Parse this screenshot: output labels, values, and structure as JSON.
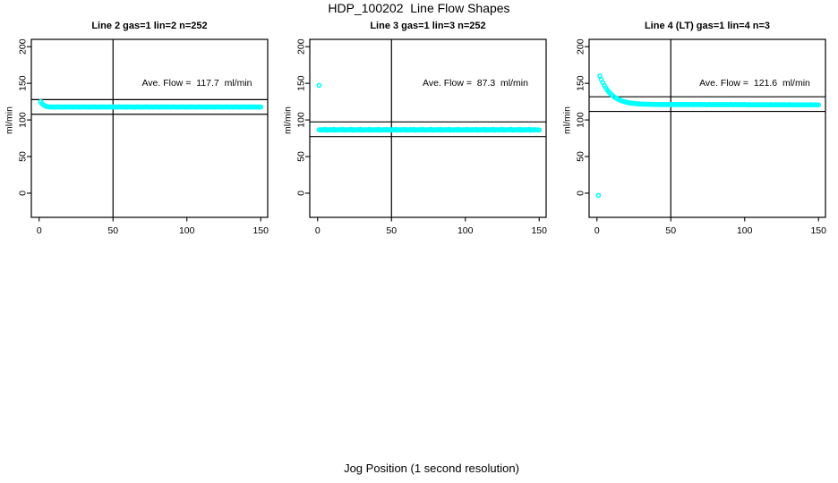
{
  "figure": {
    "title": "HDP_100202  Line Flow Shapes",
    "x_axis_label": "Jog Position (1 second resolution)",
    "background_color": "#ffffff",
    "axis_color": "#000000",
    "point_color": "#00ffff",
    "marker": "open-circle"
  },
  "chart_data": [
    {
      "type": "scatter",
      "title": "Line 2 gas=1 lin=2 n=252",
      "annotation": "Ave. Flow =  117.7  ml/min",
      "ave_flow": 117.7,
      "ylabel": "ml/min",
      "x_ticks": [
        0,
        50,
        100,
        150
      ],
      "y_ticks": [
        0,
        50,
        100,
        150,
        200
      ],
      "xlim": [
        -5.3,
        154.7
      ],
      "ylim": [
        -33,
        210
      ],
      "grid": false,
      "legend": "none",
      "vline_x": 50,
      "reference_lines": [
        127.7,
        107.7
      ],
      "x_start": 1,
      "x_step": 1,
      "y": [
        124.8,
        122.2,
        120.4,
        119.1,
        118.4,
        118.0,
        117.8,
        117.7,
        117.5,
        117.9,
        117.4,
        118.0,
        117.6,
        117.8,
        117.5,
        117.9,
        117.4,
        118.0,
        117.6,
        117.8,
        117.5,
        117.9,
        117.4,
        118.0,
        117.6,
        117.8,
        117.5,
        117.9,
        117.4,
        118.0,
        117.6,
        117.8,
        117.5,
        117.9,
        117.4,
        118.0,
        117.6,
        117.8,
        117.5,
        117.9,
        117.4,
        118.0,
        117.6,
        117.8,
        117.5,
        117.9,
        117.4,
        118.0,
        117.6,
        117.8,
        117.5,
        117.9,
        117.4,
        118.0,
        117.6,
        117.8,
        117.5,
        117.9,
        117.4,
        118.0,
        117.6,
        117.8,
        117.5,
        117.9,
        117.4,
        118.0,
        117.6,
        117.8,
        117.5,
        117.9,
        117.4,
        118.0,
        117.6,
        117.8,
        117.5,
        117.9,
        117.4,
        118.0,
        117.6,
        117.8,
        117.5,
        117.9,
        117.4,
        118.0,
        117.6,
        117.8,
        117.5,
        117.9,
        117.4,
        118.0,
        117.6,
        117.8,
        117.5,
        117.9,
        117.4,
        118.0,
        117.6,
        117.8,
        117.5,
        117.9,
        117.4,
        118.0,
        117.6,
        117.8,
        117.5,
        117.9,
        117.4,
        118.0,
        117.6,
        117.8,
        117.5,
        117.9,
        117.4,
        118.0,
        117.6,
        117.8,
        117.5,
        117.9,
        117.4,
        118.0,
        117.6,
        117.8,
        117.5,
        117.9,
        117.4,
        118.0,
        117.6,
        117.8,
        117.5,
        117.9,
        117.4,
        118.0,
        117.6,
        117.8,
        117.5,
        117.9,
        117.4,
        118.0,
        117.6,
        117.8,
        117.5,
        117.9,
        117.4,
        118.0,
        117.6,
        117.8,
        117.5,
        117.9,
        117.4,
        117.7
      ],
      "extra_points": []
    },
    {
      "type": "scatter",
      "title": "Line 3 gas=1 lin=3 n=252",
      "annotation": "Ave. Flow =  87.3  ml/min",
      "ave_flow": 87.3,
      "ylabel": "ml/min",
      "x_ticks": [
        0,
        50,
        100,
        150
      ],
      "y_ticks": [
        0,
        50,
        100,
        150,
        200
      ],
      "xlim": [
        -5.3,
        154.7
      ],
      "ylim": [
        -33,
        210
      ],
      "grid": false,
      "legend": "none",
      "vline_x": 50,
      "reference_lines": [
        97.3,
        77.3
      ],
      "x_start": 1,
      "x_step": 1,
      "y": [
        86.5,
        86.2,
        86.9,
        86.4,
        87.1,
        86.0,
        86.7,
        86.2,
        86.9,
        86.4,
        87.1,
        86.0,
        86.7,
        86.2,
        86.9,
        86.4,
        87.1,
        86.0,
        86.7,
        86.2,
        86.9,
        86.4,
        87.1,
        86.0,
        86.7,
        86.2,
        86.9,
        86.4,
        87.1,
        86.0,
        86.7,
        86.2,
        86.9,
        86.4,
        87.1,
        86.0,
        86.7,
        86.2,
        86.9,
        86.4,
        87.1,
        86.0,
        86.7,
        86.2,
        86.9,
        86.4,
        87.1,
        86.0,
        86.7,
        86.2,
        86.9,
        86.4,
        87.1,
        86.0,
        86.7,
        86.2,
        86.9,
        86.4,
        87.1,
        86.0,
        86.7,
        86.2,
        86.9,
        86.4,
        87.1,
        86.0,
        86.7,
        86.2,
        86.9,
        86.4,
        87.1,
        86.0,
        86.7,
        86.2,
        86.9,
        86.4,
        87.1,
        86.0,
        86.7,
        86.2,
        86.9,
        86.4,
        87.1,
        86.0,
        86.7,
        86.2,
        86.9,
        86.4,
        87.1,
        86.0,
        86.7,
        86.2,
        86.9,
        86.4,
        87.1,
        86.0,
        86.7,
        86.2,
        86.9,
        86.4,
        87.1,
        86.0,
        86.7,
        86.2,
        86.9,
        86.4,
        87.1,
        86.0,
        86.7,
        86.2,
        86.9,
        86.4,
        87.1,
        86.0,
        86.7,
        86.2,
        86.9,
        86.4,
        87.1,
        86.0,
        86.7,
        86.2,
        86.9,
        86.4,
        87.1,
        86.0,
        86.7,
        86.2,
        86.9,
        86.4,
        87.1,
        86.0,
        86.7,
        86.2,
        86.9,
        86.4,
        87.1,
        86.0,
        86.7,
        86.2,
        86.9,
        86.4,
        87.1,
        86.0,
        86.7,
        86.2,
        86.9,
        86.4,
        86.6,
        86.3
      ],
      "extra_points": [
        [
          1,
          147.2
        ]
      ]
    },
    {
      "type": "scatter",
      "title": "Line 4 (LT) gas=1 lin=4 n=3",
      "annotation": "Ave. Flow =  121.6  ml/min",
      "ave_flow": 121.6,
      "ylabel": "ml/min",
      "x_ticks": [
        0,
        50,
        100,
        150
      ],
      "y_ticks": [
        0,
        50,
        100,
        150,
        200
      ],
      "xlim": [
        -5.3,
        154.7
      ],
      "ylim": [
        -33,
        210
      ],
      "grid": false,
      "legend": "none",
      "vline_x": 50,
      "reference_lines": [
        131.6,
        111.6
      ],
      "x_start": 2,
      "x_step": 1,
      "y": [
        160.2,
        155.1,
        150.8,
        147.1,
        143.7,
        140.8,
        138.3,
        136.1,
        134.2,
        132.5,
        131.0,
        129.7,
        128.6,
        127.6,
        126.7,
        125.9,
        125.3,
        124.7,
        124.2,
        123.7,
        123.3,
        123.0,
        122.7,
        122.5,
        122.3,
        122.1,
        121.9,
        121.8,
        121.7,
        121.6,
        121.5,
        121.5,
        121.4,
        121.4,
        121.3,
        121.3,
        121.2,
        121.2,
        121.2,
        121.1,
        121.0,
        121.2,
        120.9,
        121.0,
        121.2,
        120.9,
        121.0,
        121.2,
        120.9,
        121.0,
        121.2,
        120.9,
        121.0,
        121.2,
        120.9,
        121.0,
        121.2,
        120.9,
        121.0,
        121.2,
        120.9,
        121.0,
        121.2,
        120.9,
        121.0,
        121.2,
        120.9,
        121.0,
        121.2,
        120.9,
        120.9,
        121.1,
        120.8,
        120.9,
        121.1,
        120.8,
        120.9,
        121.1,
        120.8,
        120.9,
        121.1,
        120.8,
        120.9,
        121.1,
        120.8,
        120.9,
        121.1,
        120.8,
        120.9,
        121.1,
        120.8,
        120.9,
        121.1,
        120.8,
        120.9,
        121.1,
        120.8,
        120.9,
        121.1,
        120.8,
        120.7,
        120.9,
        120.6,
        120.7,
        120.9,
        120.6,
        120.7,
        120.9,
        120.6,
        120.7,
        120.9,
        120.6,
        120.7,
        120.9,
        120.6,
        120.7,
        120.9,
        120.6,
        120.7,
        120.9,
        120.6,
        120.7,
        120.9,
        120.6,
        120.7,
        120.9,
        120.6,
        120.7,
        120.9,
        120.6,
        120.6,
        120.8,
        120.5,
        120.6,
        120.8,
        120.5,
        120.6,
        120.8,
        120.5,
        120.6,
        120.8,
        120.5,
        120.6,
        120.8,
        120.5,
        120.6,
        120.8,
        120.5,
        120.6
      ],
      "extra_points": [
        [
          1,
          -3.0
        ]
      ]
    }
  ]
}
